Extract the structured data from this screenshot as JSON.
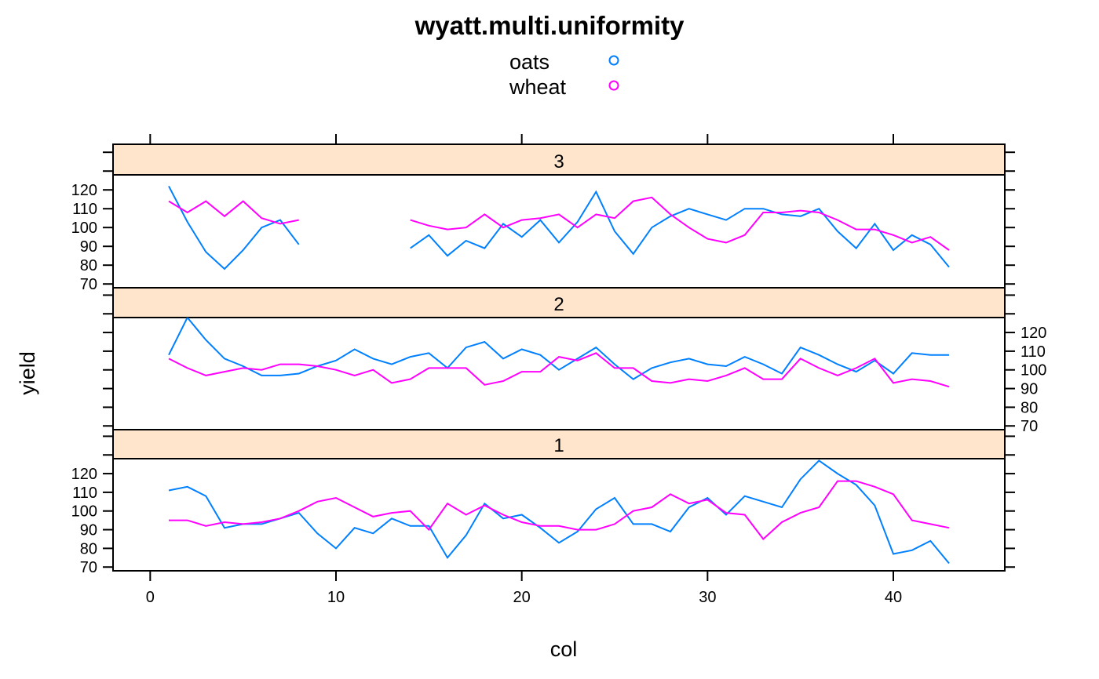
{
  "colors": {
    "oats": "#0080ff",
    "wheat": "#ff00ff",
    "strip": "#ffe5cc",
    "axis": "#000000"
  },
  "chart_data": {
    "type": "line",
    "title": "wyatt.multi.uniformity",
    "xlabel": "col",
    "ylabel": "yield",
    "xlim": [
      -2,
      46
    ],
    "ylim": [
      68,
      128
    ],
    "x_ticks": [
      0,
      10,
      20,
      30,
      40
    ],
    "y_ticks": [
      70,
      80,
      90,
      100,
      110,
      120
    ],
    "legend": {
      "placement": "top",
      "entries": [
        {
          "name": "oats",
          "color": "#0080ff",
          "symbol": "circle"
        },
        {
          "name": "wheat",
          "color": "#ff00ff",
          "symbol": "circle"
        }
      ]
    },
    "panels": [
      {
        "label": "3",
        "y_axis_side": "left",
        "series": [
          {
            "name": "oats",
            "x": [
              1,
              2,
              3,
              4,
              5,
              6,
              7,
              8,
              null,
              14,
              15,
              16,
              17,
              18,
              19,
              20,
              21,
              22,
              23,
              24,
              25,
              26,
              27,
              28,
              29,
              30,
              31,
              32,
              33,
              34,
              35,
              36,
              37,
              38,
              39,
              40,
              41,
              42,
              43
            ],
            "values": [
              122,
              103,
              87,
              78,
              88,
              100,
              104,
              91,
              null,
              89,
              96,
              85,
              93,
              89,
              102,
              95,
              104,
              92,
              103,
              119,
              98,
              86,
              100,
              106,
              110,
              107,
              104,
              110,
              110,
              107,
              106,
              110,
              98,
              89,
              102,
              88,
              96,
              91,
              79
            ]
          },
          {
            "name": "wheat",
            "x": [
              1,
              2,
              3,
              4,
              5,
              6,
              7,
              8,
              null,
              14,
              15,
              16,
              17,
              18,
              19,
              20,
              21,
              22,
              23,
              24,
              25,
              26,
              27,
              28,
              29,
              30,
              31,
              32,
              33,
              34,
              35,
              36,
              37,
              38,
              39,
              40,
              41,
              42,
              43
            ],
            "values": [
              114,
              108,
              114,
              106,
              114,
              105,
              102,
              104,
              null,
              104,
              101,
              99,
              100,
              107,
              100,
              104,
              105,
              107,
              100,
              107,
              105,
              114,
              116,
              107,
              100,
              94,
              92,
              96,
              108,
              108,
              109,
              108,
              104,
              99,
              99,
              96,
              92,
              95,
              88
            ]
          }
        ]
      },
      {
        "label": "2",
        "y_axis_side": "right",
        "series": [
          {
            "name": "oats",
            "x": [
              1,
              2,
              3,
              4,
              5,
              6,
              7,
              8,
              9,
              10,
              11,
              12,
              13,
              14,
              15,
              16,
              17,
              18,
              19,
              20,
              21,
              22,
              23,
              24,
              25,
              26,
              27,
              28,
              29,
              30,
              31,
              32,
              33,
              34,
              35,
              36,
              37,
              38,
              39,
              40,
              41,
              42,
              43
            ],
            "values": [
              108,
              128,
              116,
              106,
              102,
              97,
              97,
              98,
              102,
              105,
              111,
              106,
              103,
              107,
              109,
              101,
              112,
              115,
              106,
              111,
              108,
              100,
              106,
              112,
              103,
              95,
              101,
              104,
              106,
              103,
              102,
              107,
              103,
              98,
              112,
              108,
              103,
              99,
              105,
              98,
              109,
              108,
              108
            ]
          },
          {
            "name": "wheat",
            "x": [
              1,
              2,
              3,
              4,
              5,
              6,
              7,
              8,
              9,
              10,
              11,
              12,
              13,
              14,
              15,
              16,
              17,
              18,
              19,
              20,
              21,
              22,
              23,
              24,
              25,
              26,
              27,
              28,
              29,
              30,
              31,
              32,
              33,
              34,
              35,
              36,
              37,
              38,
              39,
              40,
              41,
              42,
              43
            ],
            "values": [
              106,
              101,
              97,
              99,
              101,
              100,
              103,
              103,
              102,
              100,
              97,
              100,
              93,
              95,
              101,
              101,
              101,
              92,
              94,
              99,
              99,
              107,
              105,
              109,
              101,
              101,
              94,
              93,
              95,
              94,
              97,
              101,
              95,
              95,
              106,
              101,
              97,
              101,
              106,
              93,
              95,
              94,
              91
            ]
          }
        ]
      },
      {
        "label": "1",
        "y_axis_side": "left",
        "series": [
          {
            "name": "oats",
            "x": [
              1,
              2,
              3,
              4,
              5,
              6,
              7,
              8,
              9,
              10,
              11,
              12,
              13,
              14,
              15,
              16,
              17,
              18,
              19,
              20,
              21,
              22,
              23,
              24,
              25,
              26,
              27,
              28,
              29,
              30,
              31,
              32,
              33,
              34,
              35,
              36,
              37,
              38,
              39,
              40,
              41,
              42,
              43
            ],
            "values": [
              111,
              113,
              108,
              91,
              93,
              93,
              96,
              99,
              88,
              80,
              91,
              88,
              96,
              92,
              92,
              75,
              87,
              104,
              96,
              98,
              91,
              83,
              89,
              101,
              107,
              93,
              93,
              89,
              102,
              107,
              98,
              108,
              105,
              102,
              117,
              127,
              120,
              114,
              103,
              77,
              79,
              84,
              72
            ]
          },
          {
            "name": "wheat",
            "x": [
              1,
              2,
              3,
              4,
              5,
              6,
              7,
              8,
              9,
              10,
              11,
              12,
              13,
              14,
              15,
              16,
              17,
              18,
              19,
              20,
              21,
              22,
              23,
              24,
              25,
              26,
              27,
              28,
              29,
              30,
              31,
              32,
              33,
              34,
              35,
              36,
              37,
              38,
              39,
              40,
              41,
              42,
              43
            ],
            "values": [
              95,
              95,
              92,
              94,
              93,
              94,
              96,
              100,
              105,
              107,
              102,
              97,
              99,
              100,
              90,
              104,
              98,
              103,
              98,
              94,
              92,
              92,
              90,
              90,
              93,
              100,
              102,
              109,
              104,
              106,
              99,
              98,
              85,
              94,
              99,
              102,
              116,
              116,
              113,
              109,
              95,
              93,
              91
            ]
          }
        ]
      }
    ]
  }
}
